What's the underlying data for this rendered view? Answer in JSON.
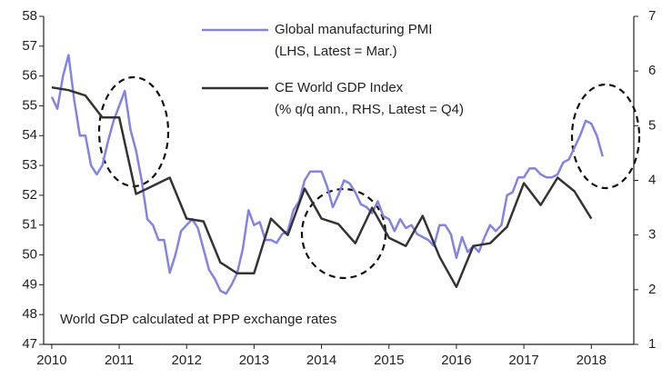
{
  "chart_data": {
    "type": "line",
    "xlim": [
      2009.88,
      2018.63
    ],
    "xticks": [
      2010,
      2011,
      2012,
      2013,
      2014,
      2015,
      2016,
      2017,
      2018
    ],
    "ylim": [
      47,
      58
    ],
    "yticks": [
      47,
      48,
      49,
      50,
      51,
      52,
      53,
      54,
      55,
      56,
      57,
      58
    ],
    "y2lim": [
      1,
      7
    ],
    "y2ticks": [
      1,
      2,
      3,
      4,
      5,
      6,
      7
    ],
    "annotation": "World GDP calculated at PPP exchange rates",
    "series": [
      {
        "name": "Global manufacturing PMI",
        "note": "(LHS, Latest = Mar.)",
        "color": "#8383e3",
        "x": [
          2010,
          2010.083,
          2010.167,
          2010.25,
          2010.333,
          2010.417,
          2010.5,
          2010.583,
          2010.667,
          2010.75,
          2010.833,
          2010.917,
          2011,
          2011.083,
          2011.167,
          2011.25,
          2011.333,
          2011.417,
          2011.5,
          2011.583,
          2011.667,
          2011.75,
          2011.833,
          2011.917,
          2012,
          2012.083,
          2012.167,
          2012.25,
          2012.333,
          2012.417,
          2012.5,
          2012.583,
          2012.667,
          2012.75,
          2012.833,
          2012.917,
          2013,
          2013.083,
          2013.167,
          2013.25,
          2013.333,
          2013.417,
          2013.5,
          2013.583,
          2013.667,
          2013.75,
          2013.833,
          2013.917,
          2014,
          2014.083,
          2014.167,
          2014.25,
          2014.333,
          2014.417,
          2014.5,
          2014.583,
          2014.667,
          2014.75,
          2014.833,
          2014.917,
          2015,
          2015.083,
          2015.167,
          2015.25,
          2015.333,
          2015.417,
          2015.5,
          2015.583,
          2015.667,
          2015.75,
          2015.833,
          2015.917,
          2016,
          2016.083,
          2016.167,
          2016.25,
          2016.333,
          2016.417,
          2016.5,
          2016.583,
          2016.667,
          2016.75,
          2016.833,
          2016.917,
          2017,
          2017.083,
          2017.167,
          2017.25,
          2017.333,
          2017.417,
          2017.5,
          2017.583,
          2017.667,
          2017.75,
          2017.833,
          2017.917,
          2018,
          2018.083,
          2018.167
        ],
        "values": [
          55.3,
          54.9,
          56.0,
          56.7,
          55.2,
          54.0,
          54.0,
          53.0,
          52.7,
          53.0,
          53.8,
          54.5,
          55.0,
          55.5,
          54.2,
          53.5,
          52.5,
          51.2,
          51.0,
          50.5,
          50.5,
          49.4,
          50.0,
          50.8,
          51.0,
          51.2,
          50.9,
          50.2,
          49.5,
          49.2,
          48.8,
          48.7,
          49.0,
          49.4,
          50.2,
          51.5,
          51.0,
          51.1,
          50.5,
          50.5,
          50.4,
          50.7,
          50.8,
          51.5,
          51.8,
          52.5,
          52.8,
          52.8,
          52.8,
          52.3,
          51.6,
          52.0,
          52.5,
          52.4,
          52.1,
          51.7,
          51.6,
          51.4,
          51.8,
          51.3,
          51.2,
          50.8,
          51.2,
          50.9,
          51.0,
          50.7,
          50.6,
          50.5,
          50.3,
          51.0,
          51.0,
          50.7,
          49.9,
          50.6,
          50.1,
          50.3,
          50.1,
          50.6,
          51.0,
          50.8,
          51.0,
          52.0,
          52.1,
          52.6,
          52.6,
          52.9,
          52.9,
          52.7,
          52.6,
          52.6,
          52.7,
          53.1,
          53.2,
          53.6,
          54.0,
          54.5,
          54.4,
          54.0,
          53.3
        ]
      },
      {
        "name": "CE World GDP Index",
        "note": "(% q/q ann., RHS, Latest = Q4)",
        "color": "#333333",
        "axis": "y2",
        "x": [
          2010,
          2010.25,
          2010.5,
          2010.75,
          2011,
          2011.25,
          2011.5,
          2011.75,
          2012,
          2012.25,
          2012.5,
          2012.75,
          2013,
          2013.25,
          2013.5,
          2013.75,
          2014,
          2014.25,
          2014.5,
          2014.75,
          2015,
          2015.25,
          2015.5,
          2015.75,
          2016,
          2016.25,
          2016.5,
          2016.75,
          2017,
          2017.25,
          2017.5,
          2017.75,
          2018
        ],
        "values": [
          5.7,
          5.65,
          5.55,
          5.15,
          5.15,
          3.75,
          3.9,
          4.05,
          3.3,
          3.25,
          2.5,
          2.3,
          2.3,
          3.3,
          3.0,
          3.85,
          3.3,
          3.2,
          2.85,
          3.5,
          2.95,
          2.8,
          3.35,
          2.6,
          2.05,
          2.8,
          2.85,
          3.15,
          3.95,
          3.55,
          4.05,
          3.8,
          3.3
        ]
      }
    ]
  }
}
